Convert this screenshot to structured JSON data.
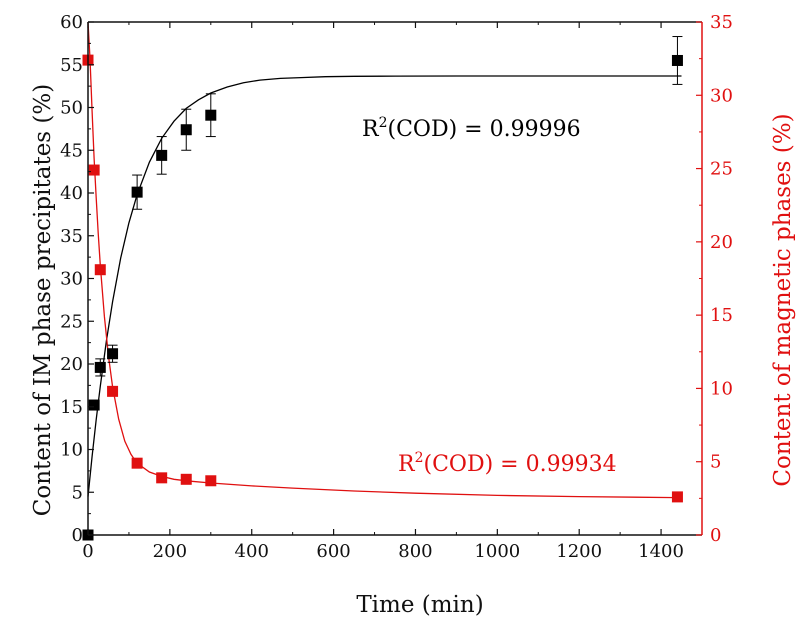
{
  "chart_data": {
    "type": "scatter",
    "xlabel": "Time (min)",
    "ylabel_left": "Content of IM phase precipitates (%)",
    "ylabel_right": "Content of magnetic phases (%)",
    "xlim": [
      0,
      1500
    ],
    "ylim_left": [
      0,
      60
    ],
    "ylim_right": [
      0,
      35
    ],
    "x_ticks": [
      0,
      200,
      400,
      600,
      800,
      1000,
      1200,
      1400
    ],
    "y_left_ticks": [
      0,
      5,
      10,
      15,
      20,
      25,
      30,
      35,
      40,
      45,
      50,
      55,
      60
    ],
    "y_right_ticks": [
      0,
      5,
      10,
      15,
      20,
      25,
      30,
      35
    ],
    "grid": false,
    "colors": {
      "im_series": "#000000",
      "magnetic_series": "#e01010"
    },
    "series": [
      {
        "axis": "left",
        "color": "#000000",
        "marker": "square",
        "x": [
          0,
          15,
          30,
          60,
          120,
          180,
          240,
          300,
          1440
        ],
        "y": [
          0,
          15.2,
          19.6,
          21.2,
          40.1,
          44.4,
          47.4,
          49.1,
          55.5
        ],
        "error": [
          0,
          0,
          1.0,
          1.0,
          2.0,
          2.2,
          2.4,
          2.5,
          2.8
        ]
      },
      {
        "axis": "right",
        "color": "#e01010",
        "marker": "square",
        "x": [
          0,
          15,
          30,
          60,
          120,
          180,
          240,
          300,
          1440
        ],
        "y": [
          32.4,
          24.9,
          18.1,
          9.8,
          4.9,
          3.9,
          3.8,
          3.7,
          2.6
        ]
      }
    ],
    "fits": [
      {
        "axis": "left",
        "color": "#000000",
        "x": [
          0,
          10,
          20,
          30,
          45,
          60,
          80,
          100,
          120,
          150,
          180,
          210,
          240,
          270,
          300,
          340,
          380,
          420,
          470,
          520,
          580,
          650,
          750,
          900,
          1100,
          1300,
          1450
        ],
        "y": [
          4.5,
          9.2,
          13.5,
          17.4,
          22.7,
          27.3,
          32.4,
          36.5,
          39.8,
          43.6,
          46.4,
          48.4,
          49.9,
          50.9,
          51.7,
          52.4,
          52.9,
          53.2,
          53.4,
          53.5,
          53.6,
          53.65,
          53.67,
          53.68,
          53.68,
          53.68,
          53.68
        ]
      },
      {
        "axis": "right",
        "color": "#e01010",
        "x": [
          0,
          5,
          10,
          15,
          20,
          25,
          30,
          40,
          50,
          60,
          75,
          90,
          105,
          120,
          150,
          180,
          210,
          240,
          300,
          400,
          500,
          650,
          800,
          1000,
          1200,
          1440
        ],
        "y": [
          35,
          32.5,
          28.9,
          25.7,
          23.0,
          20.6,
          18.4,
          14.9,
          12.2,
          10.1,
          7.9,
          6.4,
          5.5,
          4.9,
          4.3,
          4.0,
          3.8,
          3.7,
          3.55,
          3.35,
          3.2,
          3.0,
          2.85,
          2.7,
          2.62,
          2.55
        ]
      }
    ],
    "annotations": [
      {
        "color": "#000000",
        "prefix": "R",
        "sup": "2",
        "suffix": "(COD) = 0.99996"
      },
      {
        "color": "#e01010",
        "prefix": "R",
        "sup": "2",
        "suffix": "(COD) = 0.99934"
      }
    ]
  }
}
